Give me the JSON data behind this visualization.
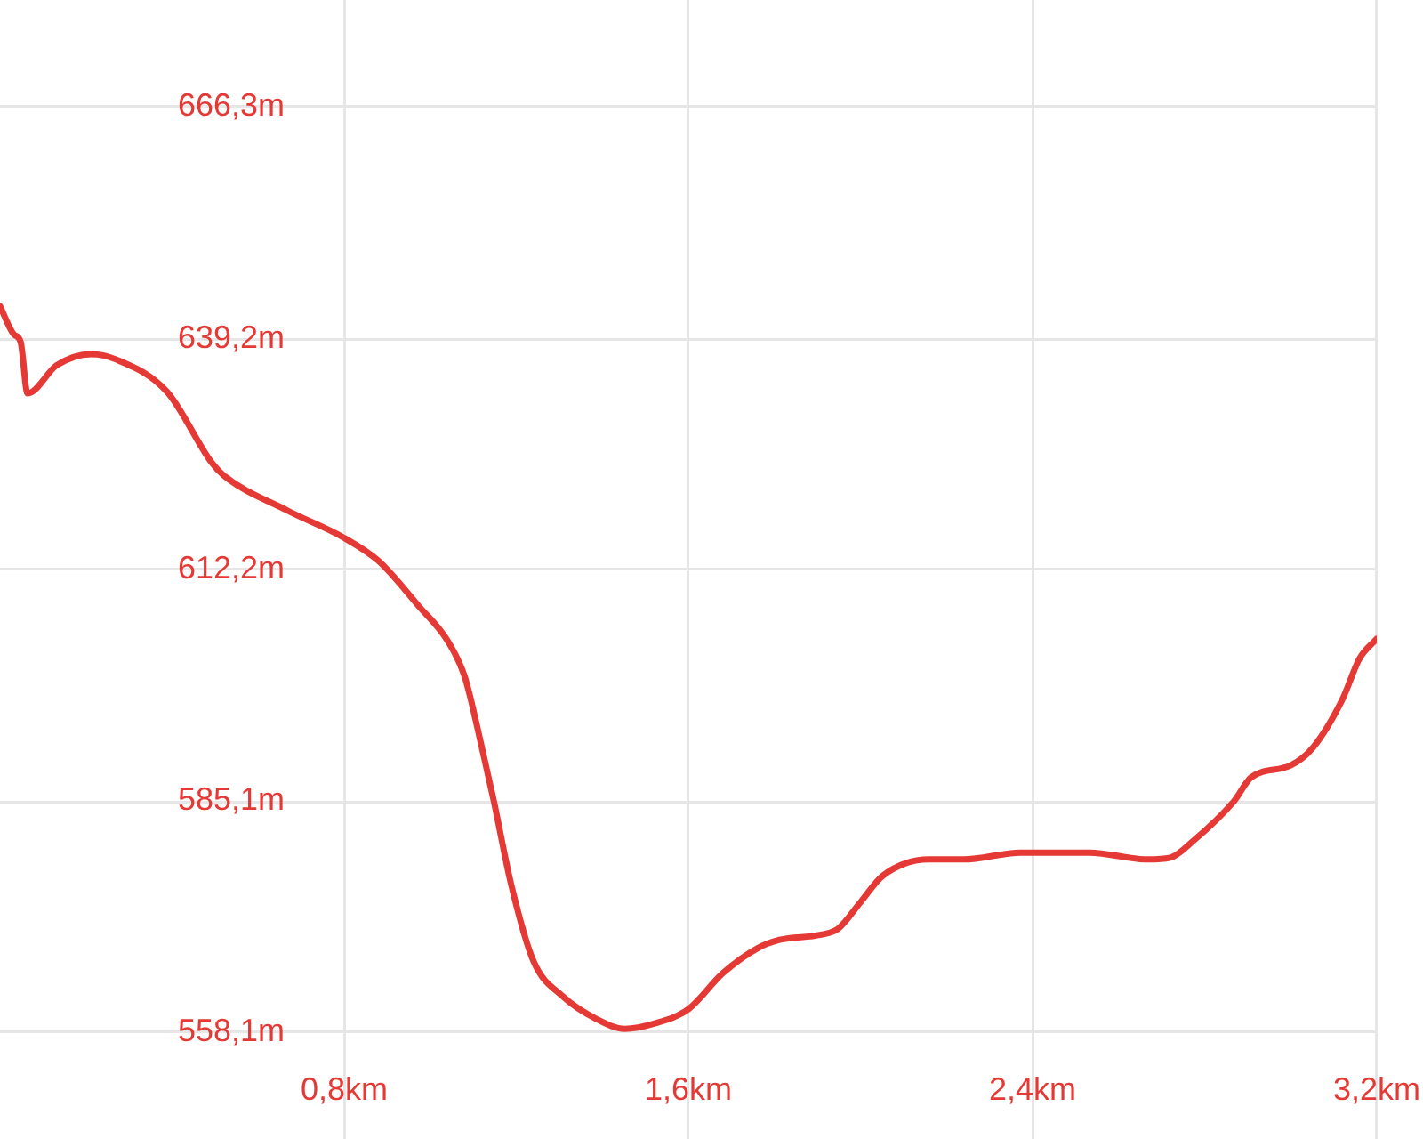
{
  "chart_data": {
    "type": "line",
    "x": [
      0,
      0.032,
      0.048,
      0.064,
      0.132,
      0.212,
      0.268,
      0.388,
      0.492,
      0.52,
      0.668,
      0.8,
      0.88,
      0.972,
      1.04,
      1.08,
      1.12,
      1.148,
      1.188,
      1.24,
      1.308,
      1.388,
      1.452,
      1.52,
      1.6,
      1.68,
      1.76,
      1.812,
      1.908,
      1.948,
      2.0,
      2.052,
      2.16,
      2.24,
      2.372,
      2.532,
      2.668,
      2.72,
      2.772,
      2.868,
      2.908,
      3.0,
      3.052,
      3.12,
      3.16,
      3.2
    ],
    "series": [
      {
        "color": "#e53935",
        "values": [
          643.0,
          639.7,
          638.8,
          632.8,
          636.1,
          637.4,
          636.8,
          633.0,
          624.7,
          623.2,
          619.1,
          615.9,
          613.2,
          608.0,
          603.9,
          599.7,
          591.4,
          585.1,
          575.4,
          566.4,
          562.3,
          559.6,
          558.5,
          559.1,
          560.8,
          565.0,
          567.9,
          568.9,
          569.5,
          570.2,
          573.3,
          576.4,
          578.3,
          578.3,
          579.1,
          579.1,
          578.3,
          578.5,
          580.4,
          585.1,
          587.9,
          589.3,
          591.4,
          597.0,
          601.8,
          604.1
        ]
      }
    ],
    "xlim": [
      0,
      3.2
    ],
    "ylim": [
      558.1,
      678.8
    ],
    "xticks": [
      {
        "value": 0.8,
        "label": "0,8km"
      },
      {
        "value": 1.6,
        "label": "1,6km"
      },
      {
        "value": 2.4,
        "label": "2,4km"
      },
      {
        "value": 3.2,
        "label": "3,2km"
      }
    ],
    "yticks": [
      {
        "value": 558.1,
        "label": "558,1m"
      },
      {
        "value": 585.1,
        "label": "585,1m"
      },
      {
        "value": 612.2,
        "label": "612,2m"
      },
      {
        "value": 639.2,
        "label": "639,2m"
      },
      {
        "value": 666.3,
        "label": "666,3m"
      }
    ],
    "grid": true,
    "legend": false,
    "marker": "none",
    "line_style": "solid"
  }
}
